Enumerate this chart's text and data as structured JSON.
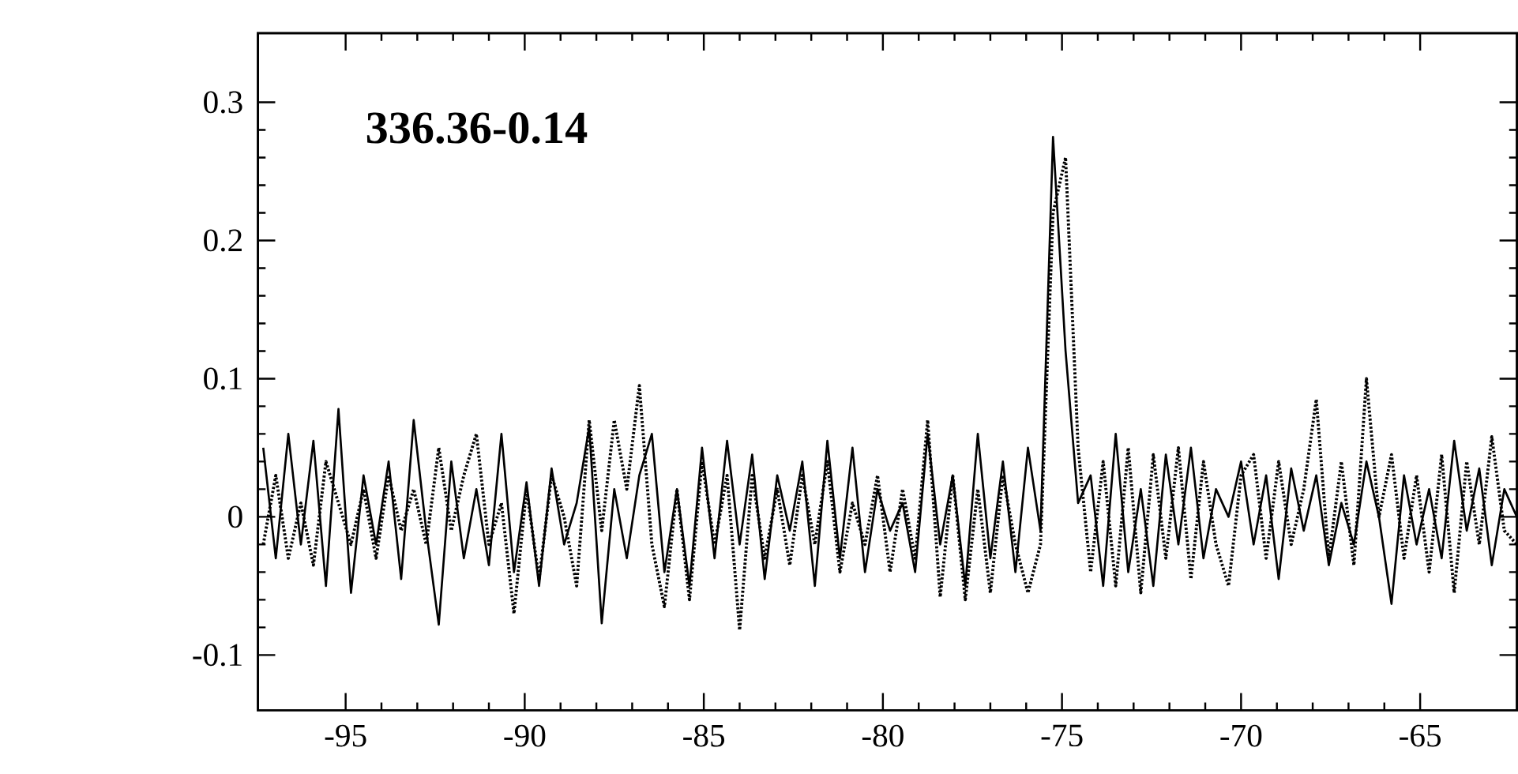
{
  "chart_data": {
    "type": "line",
    "annotations": [
      "336.36-0.14"
    ],
    "x": [
      -97.3,
      -96.95,
      -96.6,
      -96.25,
      -95.9,
      -95.55,
      -95.2,
      -94.85,
      -94.5,
      -94.15,
      -93.8,
      -93.45,
      -93.1,
      -92.75,
      -92.4,
      -92.05,
      -91.7,
      -91.35,
      -91.0,
      -90.65,
      -90.3,
      -89.95,
      -89.6,
      -89.25,
      -88.9,
      -88.55,
      -88.2,
      -87.85,
      -87.5,
      -87.15,
      -86.8,
      -86.45,
      -86.1,
      -85.75,
      -85.4,
      -85.05,
      -84.7,
      -84.35,
      -84.0,
      -83.65,
      -83.3,
      -82.95,
      -82.6,
      -82.25,
      -81.9,
      -81.55,
      -81.2,
      -80.85,
      -80.5,
      -80.15,
      -79.8,
      -79.45,
      -79.1,
      -78.75,
      -78.4,
      -78.05,
      -77.7,
      -77.35,
      -77.0,
      -76.65,
      -76.3,
      -75.95,
      -75.6,
      -75.25,
      -74.9,
      -74.55,
      -74.2,
      -73.85,
      -73.5,
      -73.15,
      -72.8,
      -72.45,
      -72.1,
      -71.75,
      -71.4,
      -71.05,
      -70.7,
      -70.35,
      -70.0,
      -69.65,
      -69.3,
      -68.95,
      -68.6,
      -68.25,
      -67.9,
      -67.55,
      -67.2,
      -66.85,
      -66.5,
      -66.15,
      -65.8,
      -65.45,
      -65.1,
      -64.75,
      -64.4,
      -64.05,
      -63.7,
      -63.35,
      -63.0,
      -62.65,
      -62.3
    ],
    "series": [
      {
        "color": "#000000",
        "line_style": "solid",
        "values": [
          0.05,
          -0.03,
          0.06,
          -0.02,
          0.055,
          -0.05,
          0.078,
          -0.055,
          0.03,
          -0.02,
          0.04,
          -0.045,
          0.07,
          -0.01,
          -0.078,
          0.04,
          -0.03,
          0.02,
          -0.035,
          0.06,
          -0.04,
          0.025,
          -0.05,
          0.035,
          -0.02,
          0.01,
          0.065,
          -0.077,
          0.02,
          -0.03,
          0.03,
          0.06,
          -0.04,
          0.02,
          -0.05,
          0.05,
          -0.03,
          0.055,
          -0.02,
          0.045,
          -0.045,
          0.03,
          -0.01,
          0.04,
          -0.05,
          0.055,
          -0.03,
          0.05,
          -0.04,
          0.02,
          -0.01,
          0.01,
          -0.04,
          0.06,
          -0.02,
          0.03,
          -0.05,
          0.06,
          -0.03,
          0.04,
          -0.04,
          0.05,
          -0.01,
          0.275,
          0.12,
          0.01,
          0.03,
          -0.05,
          0.06,
          -0.04,
          0.02,
          -0.05,
          0.045,
          -0.02,
          0.05,
          -0.03,
          0.02,
          0.0,
          0.04,
          -0.02,
          0.03,
          -0.045,
          0.035,
          -0.01,
          0.03,
          -0.035,
          0.01,
          -0.02,
          0.04,
          0.0,
          -0.063,
          0.03,
          -0.02,
          0.02,
          -0.03,
          0.055,
          -0.01,
          0.035,
          -0.035,
          0.02,
          0.0
        ]
      },
      {
        "color": "#000000",
        "line_style": "dotted",
        "values": [
          -0.02,
          0.03,
          -0.03,
          0.01,
          -0.035,
          0.04,
          0.01,
          -0.02,
          0.02,
          -0.03,
          0.03,
          -0.01,
          0.02,
          -0.02,
          0.05,
          -0.01,
          0.03,
          0.06,
          -0.02,
          0.01,
          -0.07,
          0.02,
          -0.045,
          0.03,
          0.0,
          -0.05,
          0.07,
          -0.01,
          0.07,
          0.02,
          0.095,
          -0.02,
          -0.065,
          0.02,
          -0.06,
          0.04,
          -0.02,
          0.03,
          -0.082,
          0.03,
          -0.03,
          0.02,
          -0.035,
          0.03,
          -0.02,
          0.04,
          -0.04,
          0.01,
          -0.02,
          0.03,
          -0.04,
          0.02,
          -0.03,
          0.07,
          -0.058,
          0.03,
          -0.06,
          0.02,
          -0.055,
          0.03,
          -0.02,
          -0.055,
          -0.02,
          0.22,
          0.26,
          0.05,
          -0.04,
          0.04,
          -0.05,
          0.05,
          -0.055,
          0.045,
          -0.03,
          0.05,
          -0.045,
          0.04,
          -0.02,
          -0.05,
          0.03,
          0.045,
          -0.03,
          0.04,
          -0.02,
          0.02,
          0.085,
          -0.03,
          0.04,
          -0.035,
          0.1,
          0.0,
          0.045,
          -0.03,
          0.03,
          -0.04,
          0.045,
          -0.055,
          0.04,
          -0.02,
          0.058,
          -0.01,
          -0.02
        ]
      }
    ],
    "xlim": [
      -97.45,
      -62.3
    ],
    "ylim": [
      -0.14,
      0.35
    ],
    "xticks": [
      -95,
      -90,
      -85,
      -80,
      -75,
      -70,
      -65
    ],
    "yticks": [
      -0.1,
      0,
      0.1,
      0.2,
      0.3
    ]
  }
}
